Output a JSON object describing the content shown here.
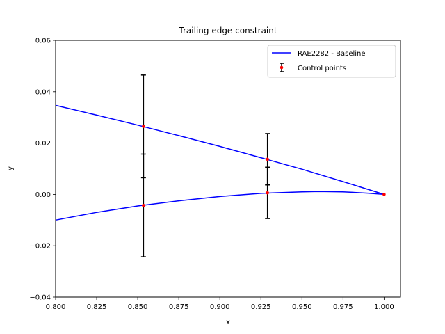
{
  "chart_data": {
    "type": "line",
    "title": "Trailing edge constraint",
    "xlabel": "x",
    "ylabel": "y",
    "xlim": [
      0.8,
      1.01
    ],
    "ylim": [
      -0.04,
      0.06
    ],
    "xticks": [
      0.8,
      0.825,
      0.85,
      0.875,
      0.9,
      0.925,
      0.95,
      0.975,
      1.0
    ],
    "xtick_labels": [
      "0.800",
      "0.825",
      "0.850",
      "0.875",
      "0.900",
      "0.925",
      "0.950",
      "0.975",
      "1.000"
    ],
    "yticks": [
      -0.04,
      -0.02,
      0.0,
      0.02,
      0.04,
      0.06
    ],
    "ytick_labels": [
      "−0.04",
      "−0.02",
      "0.00",
      "0.02",
      "0.04",
      "0.06"
    ],
    "grid": false,
    "legend_position": "top-right",
    "series": [
      {
        "name": "RAE2282 - Baseline",
        "kind": "line",
        "color": "#0000ff",
        "segments": [
          {
            "x": [
              0.8,
              0.825,
              0.85,
              0.875,
              0.9,
              0.925,
              0.95,
              0.975,
              1.0
            ],
            "y": [
              0.0347,
              0.0309,
              0.027,
              0.0229,
              0.0187,
              0.0143,
              0.0098,
              0.005,
              0.0
            ]
          },
          {
            "x": [
              0.8,
              0.825,
              0.85,
              0.875,
              0.9,
              0.925,
              0.95,
              0.96,
              0.975,
              0.99,
              1.0
            ],
            "y": [
              -0.01,
              -0.007,
              -0.0045,
              -0.0025,
              -0.0008,
              0.0004,
              0.001,
              0.0011,
              0.001,
              0.0005,
              0.0
            ]
          }
        ]
      },
      {
        "name": "Control points",
        "kind": "errorbar",
        "marker_color": "#ff0000",
        "bar_color": "#000000",
        "points": [
          {
            "x": 0.8535,
            "y": 0.0265,
            "err": 0.02
          },
          {
            "x": 0.8535,
            "y": -0.0043,
            "err": 0.02
          },
          {
            "x": 0.929,
            "y": 0.0137,
            "err": 0.01
          },
          {
            "x": 0.929,
            "y": 0.0006,
            "err": 0.01
          },
          {
            "x": 1.0,
            "y": 0.0,
            "err": 0.0
          }
        ]
      }
    ]
  }
}
